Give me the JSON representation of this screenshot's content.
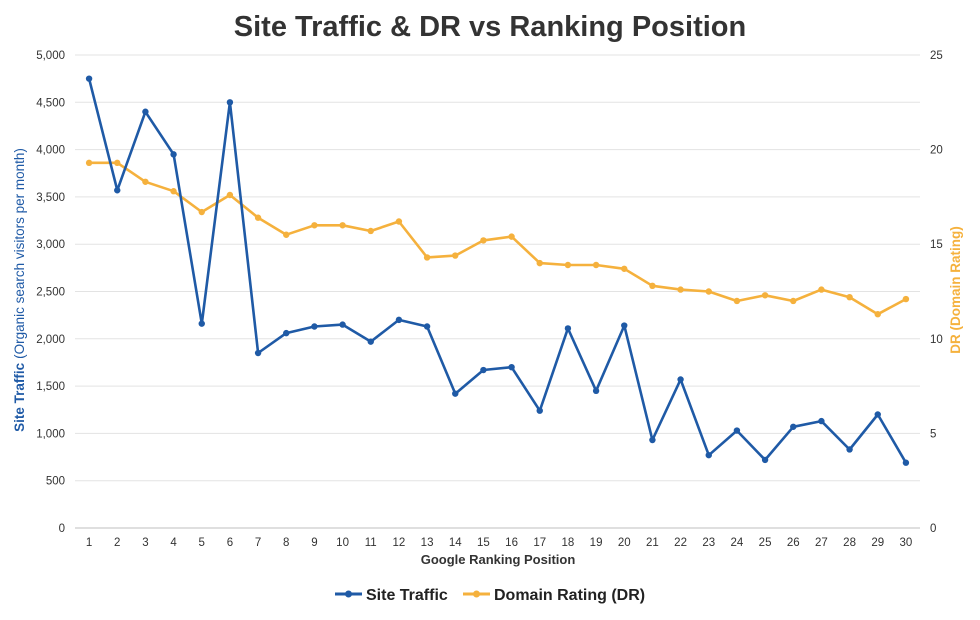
{
  "chart_data": {
    "type": "line",
    "title": "Site Traffic & DR vs Ranking Position",
    "xlabel": "Google Ranking Position",
    "ylabel_bold": "Site Traffic",
    "ylabel_rest": "(Organic search visitors per month)",
    "y2label": "DR (Domain Rating)",
    "categories": [
      "1",
      "2",
      "3",
      "4",
      "5",
      "6",
      "7",
      "8",
      "9",
      "10",
      "11",
      "12",
      "13",
      "14",
      "15",
      "16",
      "17",
      "18",
      "19",
      "20",
      "21",
      "22",
      "23",
      "24",
      "25",
      "26",
      "27",
      "28",
      "29",
      "30"
    ],
    "ylim": [
      0,
      5000
    ],
    "y_ticks": [
      "0",
      "500",
      "1,000",
      "1,500",
      "2,000",
      "2,500",
      "3,000",
      "3,500",
      "4,000",
      "4,500",
      "5,000"
    ],
    "y2lim": [
      0,
      25
    ],
    "y2_ticks": [
      "0",
      "5",
      "10",
      "15",
      "20",
      "25"
    ],
    "grid": true,
    "legend_position": "bottom",
    "series": [
      {
        "name": "Site Traffic",
        "axis": "left",
        "color": "#1f5aa6",
        "values": [
          4750,
          3570,
          4400,
          3950,
          2160,
          4500,
          1850,
          2060,
          2130,
          2150,
          1970,
          2200,
          2130,
          1420,
          1670,
          1700,
          1240,
          2110,
          1450,
          2140,
          930,
          1570,
          770,
          1030,
          720,
          1070,
          1130,
          830,
          1200,
          690
        ]
      },
      {
        "name": "Domain Rating (DR)",
        "axis": "right",
        "color": "#f5b13d",
        "values": [
          19.3,
          19.3,
          18.3,
          17.8,
          16.7,
          17.6,
          16.4,
          15.5,
          16.0,
          16.0,
          15.7,
          16.2,
          14.3,
          14.4,
          15.2,
          15.4,
          14.0,
          13.9,
          13.9,
          13.7,
          12.8,
          12.6,
          12.5,
          12.0,
          12.3,
          12.0,
          12.6,
          12.2,
          11.3,
          12.1
        ]
      }
    ]
  }
}
